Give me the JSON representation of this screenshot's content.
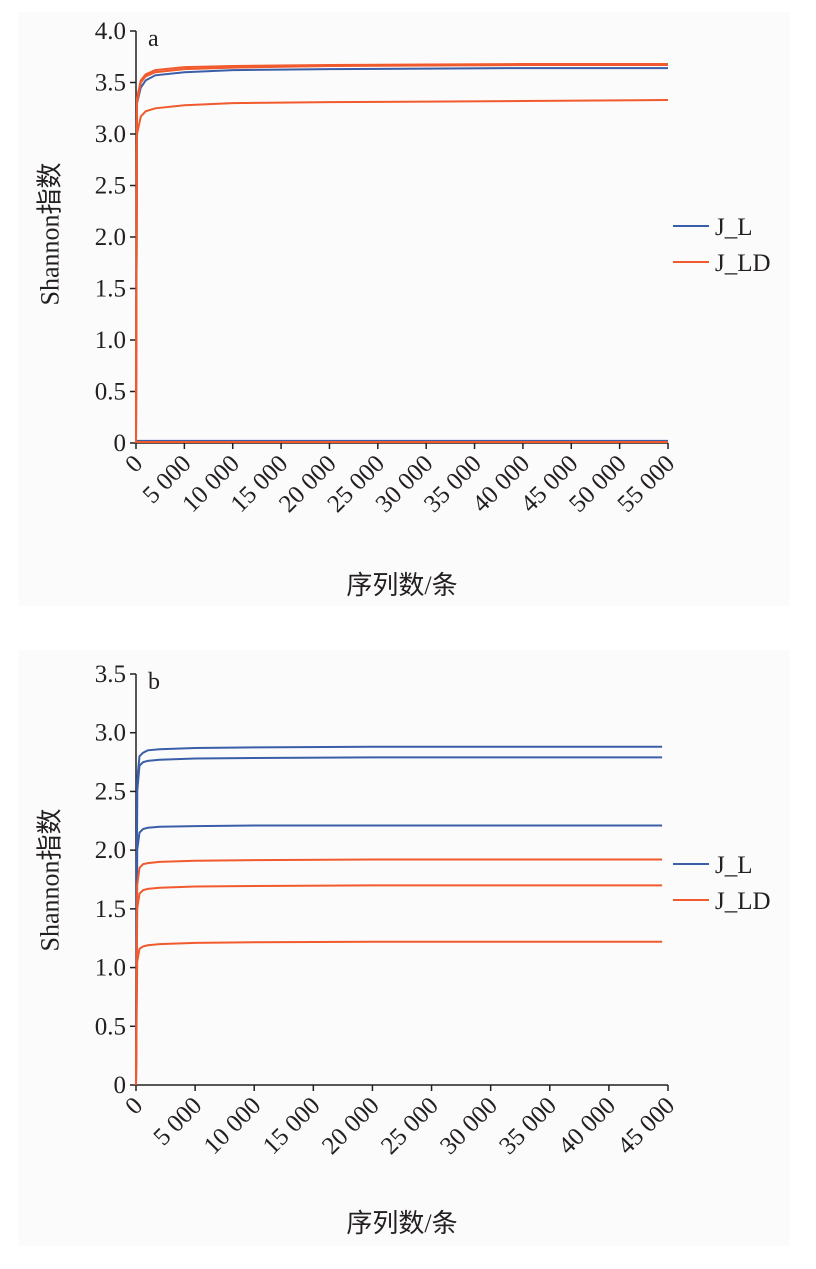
{
  "chart_data": [
    {
      "type": "line",
      "panel_label": "a",
      "xlabel": "序列数/条",
      "ylabel": "Shannon指数",
      "xlim": [
        0,
        55000
      ],
      "ylim": [
        0,
        4.0
      ],
      "xticks": [
        0,
        5000,
        10000,
        15000,
        20000,
        25000,
        30000,
        35000,
        40000,
        45000,
        50000,
        55000
      ],
      "xtick_labels": [
        "0",
        "5 000",
        "10 000",
        "15 000",
        "20 000",
        "25 000",
        "30 000",
        "35 000",
        "40 000",
        "45 000",
        "50 000",
        "55 000"
      ],
      "yticks": [
        0,
        0.5,
        1.0,
        1.5,
        2.0,
        2.5,
        3.0,
        3.5,
        4.0
      ],
      "ytick_labels": [
        "0",
        "0.5",
        "1.0",
        "1.5",
        "2.0",
        "2.5",
        "3.0",
        "3.5",
        "4.0"
      ],
      "legend": [
        "J_L",
        "J_LD"
      ],
      "legend_position": "right",
      "colors": {
        "J_L": "#3a5ea8",
        "J_LD": "#f05a2c"
      },
      "series": [
        {
          "name": "J_L",
          "x": [
            0,
            100,
            500,
            1000,
            2000,
            5000,
            10000,
            20000,
            30000,
            40000,
            55000
          ],
          "values": [
            0,
            3.3,
            3.45,
            3.52,
            3.57,
            3.6,
            3.62,
            3.63,
            3.635,
            3.64,
            3.64
          ]
        },
        {
          "name": "J_L",
          "x": [
            0,
            55000
          ],
          "values": [
            0.02,
            0.02
          ]
        },
        {
          "name": "J_LD",
          "x": [
            0,
            100,
            500,
            1000,
            2000,
            5000,
            10000,
            20000,
            30000,
            40000,
            55000
          ],
          "values": [
            0,
            3.35,
            3.52,
            3.58,
            3.62,
            3.65,
            3.66,
            3.67,
            3.675,
            3.68,
            3.68
          ]
        },
        {
          "name": "J_LD",
          "x": [
            0,
            100,
            500,
            1000,
            2000,
            5000,
            10000,
            20000,
            30000,
            40000,
            55000
          ],
          "values": [
            0,
            3.3,
            3.5,
            3.56,
            3.6,
            3.63,
            3.645,
            3.66,
            3.665,
            3.67,
            3.67
          ]
        },
        {
          "name": "J_LD",
          "x": [
            0,
            100,
            500,
            1000,
            2000,
            5000,
            10000,
            20000,
            30000,
            40000,
            55000
          ],
          "values": [
            0,
            3.0,
            3.17,
            3.22,
            3.25,
            3.28,
            3.3,
            3.31,
            3.315,
            3.32,
            3.33
          ]
        },
        {
          "name": "J_LD",
          "x": [
            0,
            55000
          ],
          "values": [
            0.01,
            0.01
          ]
        }
      ]
    },
    {
      "type": "line",
      "panel_label": "b",
      "xlabel": "序列数/条",
      "ylabel": "Shannon指数",
      "xlim": [
        0,
        45000
      ],
      "ylim": [
        0,
        3.5
      ],
      "xticks": [
        0,
        5000,
        10000,
        15000,
        20000,
        25000,
        30000,
        35000,
        40000,
        45000
      ],
      "xtick_labels": [
        "0",
        "5 000",
        "10 000",
        "15 000",
        "20 000",
        "25 000",
        "30 000",
        "35 000",
        "40 000",
        "45 000"
      ],
      "yticks": [
        0,
        0.5,
        1.0,
        1.5,
        2.0,
        2.5,
        3.0,
        3.5
      ],
      "ytick_labels": [
        "0",
        "0.5",
        "1.0",
        "1.5",
        "2.0",
        "2.5",
        "3.0",
        "3.5"
      ],
      "legend": [
        "J_L",
        "J_LD"
      ],
      "legend_position": "right",
      "colors": {
        "J_L": "#3a5ea8",
        "J_LD": "#f05a2c"
      },
      "series": [
        {
          "name": "J_L",
          "x": [
            0,
            100,
            300,
            600,
            1000,
            2000,
            5000,
            10000,
            20000,
            30000,
            44500
          ],
          "values": [
            0,
            2.6,
            2.8,
            2.83,
            2.85,
            2.86,
            2.87,
            2.875,
            2.88,
            2.88,
            2.88
          ]
        },
        {
          "name": "J_L",
          "x": [
            0,
            100,
            300,
            600,
            1000,
            2000,
            5000,
            10000,
            20000,
            30000,
            44500
          ],
          "values": [
            0,
            2.5,
            2.72,
            2.75,
            2.76,
            2.77,
            2.78,
            2.785,
            2.79,
            2.79,
            2.79
          ]
        },
        {
          "name": "J_L",
          "x": [
            0,
            100,
            300,
            600,
            1000,
            2000,
            5000,
            10000,
            20000,
            30000,
            44500
          ],
          "values": [
            0,
            2.0,
            2.15,
            2.18,
            2.19,
            2.2,
            2.205,
            2.21,
            2.21,
            2.21,
            2.21
          ]
        },
        {
          "name": "J_LD",
          "x": [
            0,
            100,
            300,
            600,
            1000,
            2000,
            5000,
            10000,
            20000,
            30000,
            44500
          ],
          "values": [
            0,
            1.7,
            1.85,
            1.88,
            1.89,
            1.9,
            1.91,
            1.915,
            1.92,
            1.92,
            1.92
          ]
        },
        {
          "name": "J_LD",
          "x": [
            0,
            100,
            300,
            600,
            1000,
            2000,
            5000,
            10000,
            20000,
            30000,
            44500
          ],
          "values": [
            0,
            1.5,
            1.63,
            1.66,
            1.67,
            1.68,
            1.69,
            1.695,
            1.7,
            1.7,
            1.7
          ]
        },
        {
          "name": "J_LD",
          "x": [
            0,
            100,
            300,
            600,
            1000,
            2000,
            5000,
            10000,
            20000,
            30000,
            44500
          ],
          "values": [
            0,
            1.05,
            1.16,
            1.18,
            1.19,
            1.2,
            1.21,
            1.215,
            1.22,
            1.22,
            1.22
          ]
        }
      ]
    }
  ]
}
